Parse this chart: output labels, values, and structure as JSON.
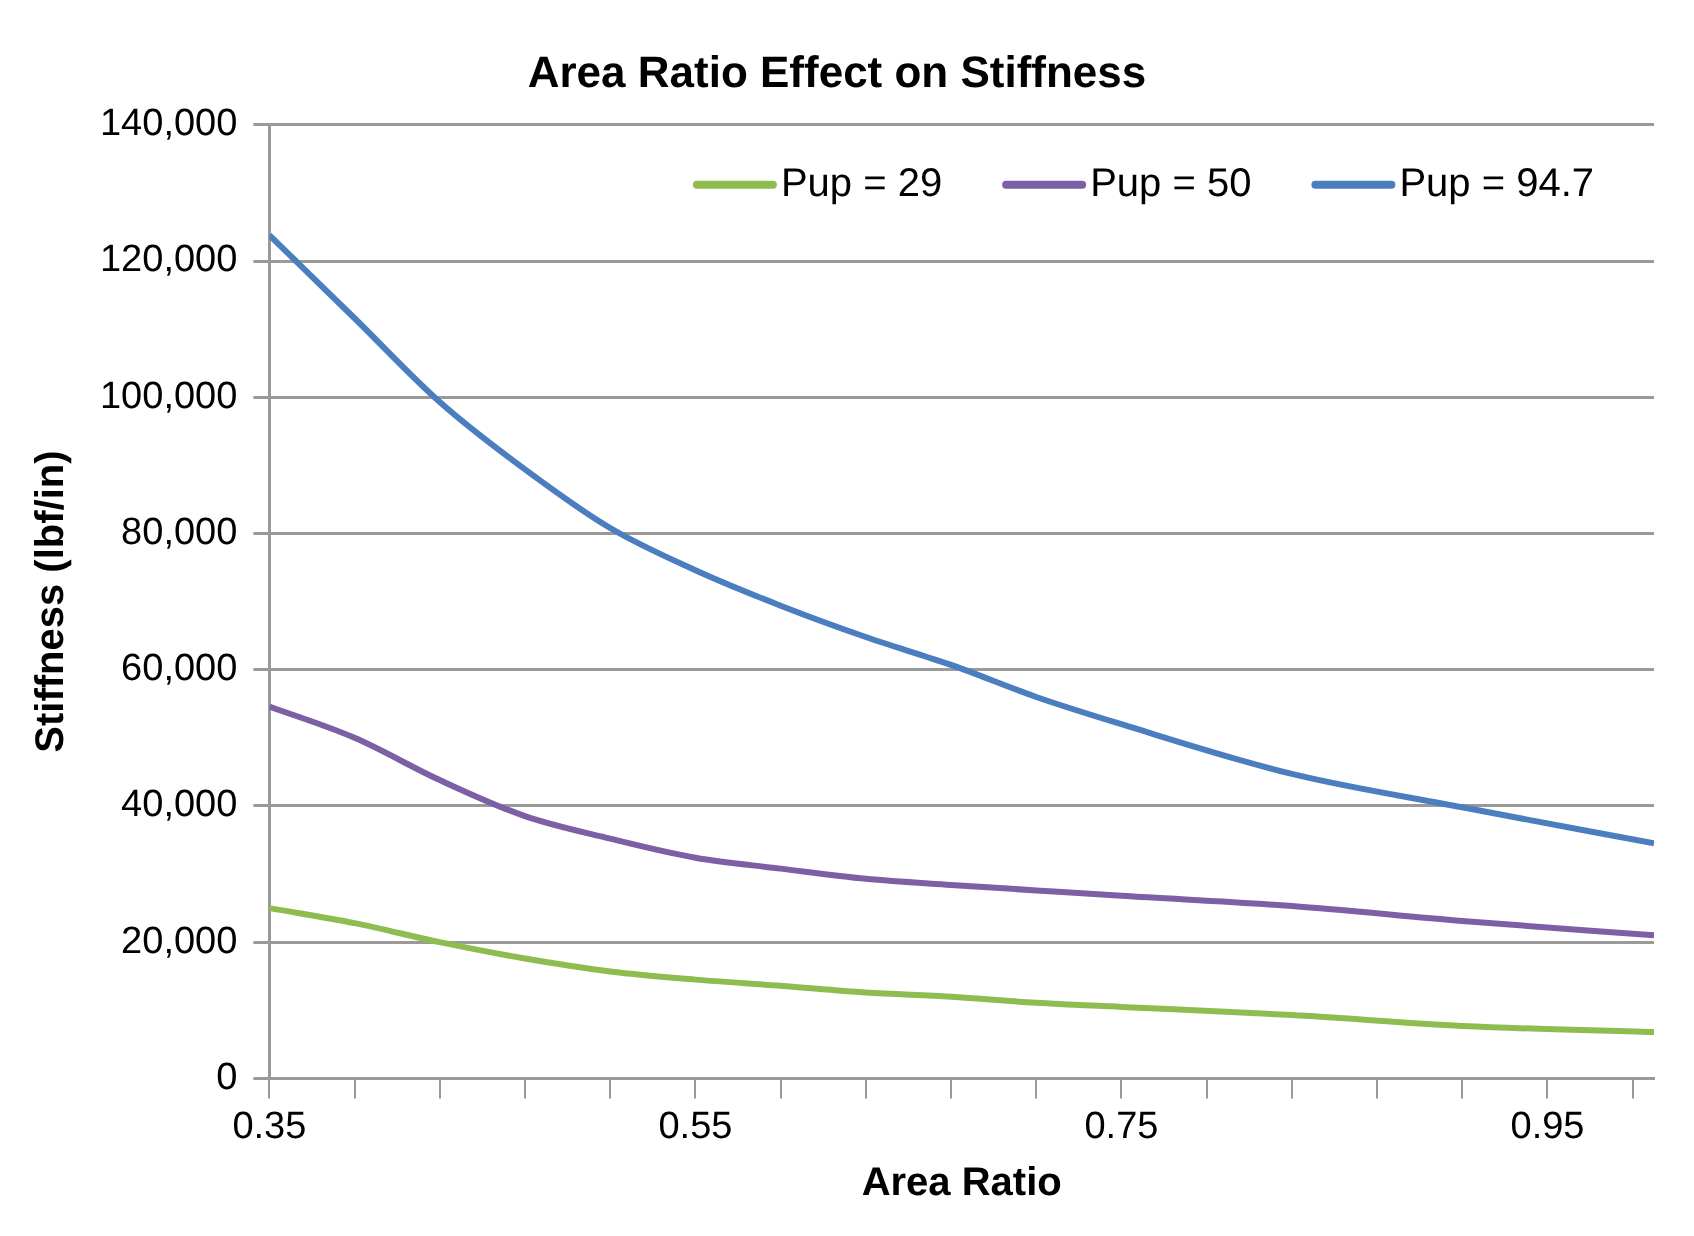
{
  "chart_data": {
    "type": "line",
    "title": "Area Ratio Effect on Stiffness",
    "xlabel": "Area Ratio",
    "ylabel": "Stiffness (lbf/in)",
    "x": [
      0.35,
      0.39,
      0.43,
      0.47,
      0.51,
      0.55,
      0.59,
      0.63,
      0.67,
      0.71,
      0.75,
      0.83,
      0.91,
      1.0
    ],
    "series": [
      {
        "name": "Pup = 29",
        "color": "#8fbc4f",
        "values": [
          25000,
          22800,
          20000,
          17600,
          15700,
          14500,
          13600,
          12600,
          12000,
          11100,
          10500,
          9300,
          7700,
          6800
        ]
      },
      {
        "name": "Pup = 50",
        "color": "#7d5fa5",
        "values": [
          54600,
          50000,
          43800,
          38500,
          35200,
          32400,
          30800,
          29300,
          28400,
          27600,
          26800,
          25300,
          23100,
          21000
        ]
      },
      {
        "name": "Pup = 94.7",
        "color": "#4a7ebf",
        "values": [
          123800,
          111600,
          99300,
          89400,
          80800,
          74600,
          69400,
          64800,
          60700,
          56000,
          52000,
          44700,
          39800,
          34500
        ]
      }
    ],
    "xlim": [
      0.35,
      1.0
    ],
    "xticks": [
      0.35,
      {
        "value": 0.39,
        "label": null
      },
      {
        "value": 0.43,
        "label": null
      },
      {
        "value": 0.47,
        "label": null
      },
      {
        "value": 0.51,
        "label": null
      },
      0.55,
      {
        "value": 0.59,
        "label": null
      },
      {
        "value": 0.63,
        "label": null
      },
      {
        "value": 0.67,
        "label": null
      },
      {
        "value": 0.71,
        "label": null
      },
      0.75,
      {
        "value": 0.79,
        "label": null
      },
      {
        "value": 0.83,
        "label": null
      },
      {
        "value": 0.87,
        "label": null
      },
      {
        "value": 0.91,
        "label": null
      },
      0.95,
      {
        "value": 0.99,
        "label": null
      }
    ],
    "ylim": [
      0,
      140000
    ],
    "yticks": [
      0,
      {
        "value": 20000,
        "label": "20,000"
      },
      {
        "value": 40000,
        "label": "40,000"
      },
      {
        "value": 60000,
        "label": "60,000"
      },
      {
        "value": 80000,
        "label": "80,000"
      },
      {
        "value": 100000,
        "label": "100,000"
      },
      {
        "value": 120000,
        "label": "120,000"
      },
      {
        "value": 140000,
        "label": "140,000"
      }
    ],
    "grid": "y",
    "legend": "top right",
    "marker": "none",
    "line_style": "solid"
  }
}
